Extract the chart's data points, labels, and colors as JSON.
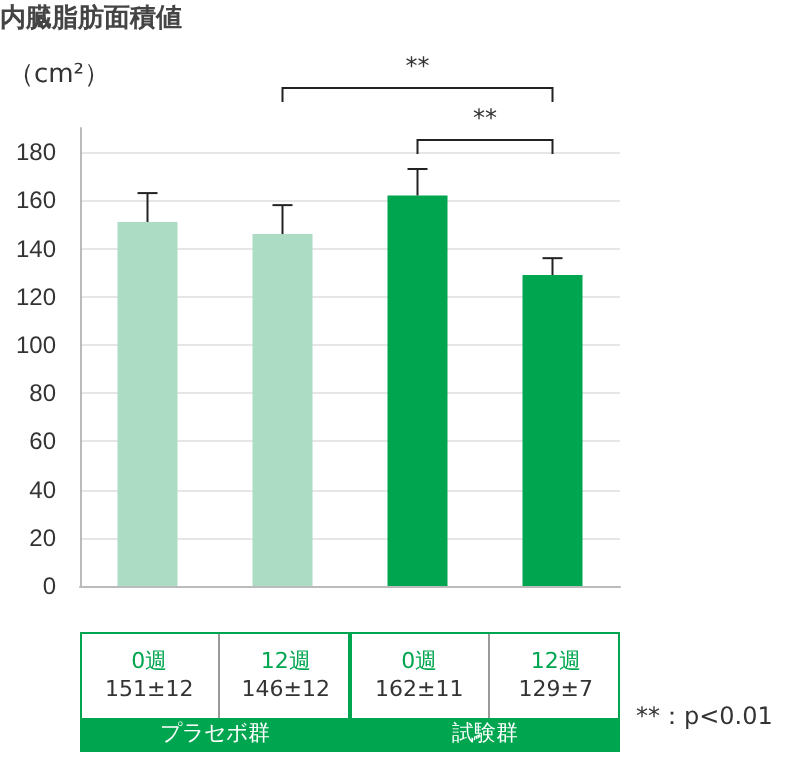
{
  "chart_data": {
    "type": "bar",
    "title": "内臓脂肪面積値",
    "ylabel": "（cm²）",
    "categories": [
      "0週",
      "12週",
      "0週",
      "12週"
    ],
    "values": [
      151,
      146,
      162,
      129
    ],
    "colors": [
      "#acdcc4",
      "#acdcc4",
      "#00a64f",
      "#00a64f"
    ],
    "errors": [
      12,
      12,
      11,
      7
    ],
    "value_labels": [
      "151±12",
      "146±12",
      "162±11",
      "129±7"
    ],
    "ylim": [
      0,
      190
    ],
    "yticks": [
      0,
      20,
      40,
      60,
      80,
      100,
      120,
      140,
      160,
      180
    ],
    "grid": "y",
    "tick_labels": "y",
    "annotations": [
      "**",
      "**",
      "プラセボ群",
      "試験群",
      "**：p<0.01"
    ]
  }
}
